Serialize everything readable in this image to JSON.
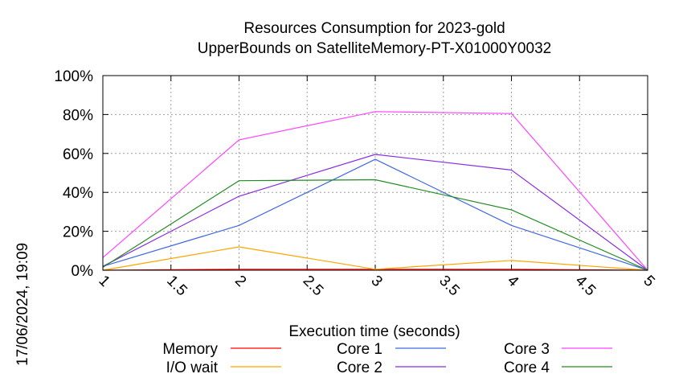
{
  "stamp": "17/06/2024, 19:09",
  "chart_data": {
    "type": "line",
    "title": [
      "Resources Consumption for 2023-gold",
      "UpperBounds on SatelliteMemory-PT-X01000Y0032"
    ],
    "xlabel": "Execution time (seconds)",
    "ylabel": "",
    "xlim": [
      1,
      5
    ],
    "ylim": [
      0,
      100
    ],
    "xticks": [
      "1",
      "1.5",
      "2",
      "2.5",
      "3",
      "3.5",
      "4",
      "4.5",
      "5"
    ],
    "yticks": [
      "0%",
      "20%",
      "40%",
      "60%",
      "80%",
      "100%"
    ],
    "grid": true,
    "legend_position": "bottom",
    "series": [
      {
        "name": "Memory",
        "color": "#ff0000",
        "x": [
          1,
          2,
          3,
          4,
          5
        ],
        "y": [
          0,
          0.5,
          0.5,
          0.5,
          0
        ]
      },
      {
        "name": "I/O wait",
        "color": "#ffa500",
        "x": [
          1,
          2,
          3,
          4,
          5
        ],
        "y": [
          0,
          12,
          0.5,
          5,
          0
        ]
      },
      {
        "name": "Core 1",
        "color": "#4169e1",
        "x": [
          1,
          2,
          3,
          4,
          5
        ],
        "y": [
          2,
          23,
          57,
          23,
          0
        ]
      },
      {
        "name": "Core 2",
        "color": "#8a2be2",
        "x": [
          1,
          2,
          3,
          4,
          5
        ],
        "y": [
          2,
          38,
          59.5,
          51.5,
          0
        ]
      },
      {
        "name": "Core 3",
        "color": "#ff44ff",
        "x": [
          1,
          2,
          3,
          4,
          5
        ],
        "y": [
          6.5,
          67,
          81.5,
          80.5,
          0
        ]
      },
      {
        "name": "Core 4",
        "color": "#228b22",
        "x": [
          1,
          2,
          3,
          4,
          5
        ],
        "y": [
          1.5,
          46,
          46.5,
          31,
          0
        ]
      }
    ]
  }
}
